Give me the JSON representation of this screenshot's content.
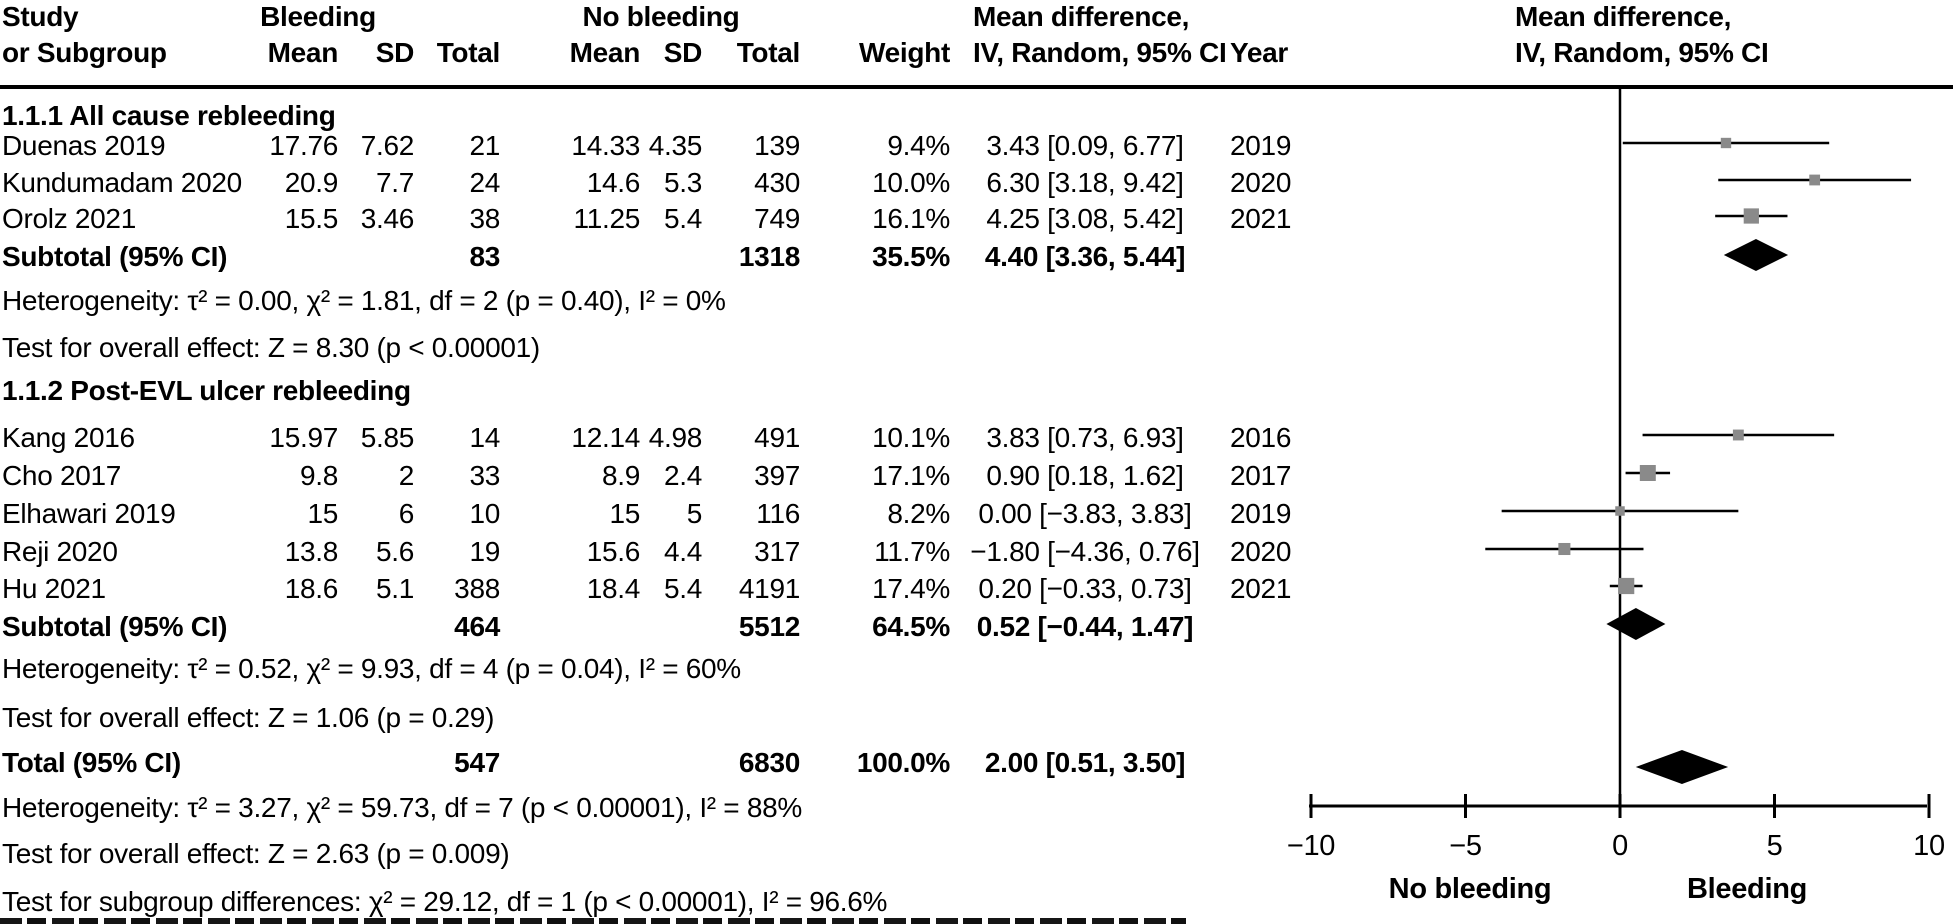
{
  "header": {
    "study_line1": "Study",
    "study_line2": "or Subgroup",
    "bleeding": "Bleeding",
    "no_bleeding": "No bleeding",
    "mean_difference": "Mean difference,",
    "iv_random": "IV, Random, 95% CI",
    "mean": "Mean",
    "sd": "SD",
    "total": "Total",
    "weight": "Weight",
    "year": "Year"
  },
  "colors": {
    "square": "#8a8a8a",
    "line": "#000000",
    "diamond": "#000000",
    "text": "#000000"
  },
  "chart_data": {
    "type": "forest",
    "effect_measure": "Mean difference, IV, Random, 95% CI",
    "model": "IV, Random, 95% CI",
    "xlim": [
      -10,
      10
    ],
    "x_ticks": [
      "−10",
      "−5",
      "0",
      "5",
      "10"
    ],
    "x_tick_values": [
      -10,
      -5,
      0,
      5,
      10
    ],
    "x_axis_label_left": "No bleeding",
    "x_axis_label_right": "Bleeding",
    "subgroups": [
      {
        "name": "1.1.1 All cause rebleeding",
        "studies": [
          {
            "study": "Duenas 2019",
            "b_mean": "17.76",
            "b_sd": "7.62",
            "b_total": "21",
            "nb_mean": "14.33",
            "nb_sd": "4.35",
            "nb_total": "139",
            "weight": "9.4%",
            "weight_pct": 9.4,
            "md": 3.43,
            "ci_low": 0.09,
            "ci_high": 6.77,
            "md_label": "3.43 [0.09, 6.77]",
            "year": "2019"
          },
          {
            "study": "Kundumadam 2020",
            "b_mean": "20.9",
            "b_sd": "7.7",
            "b_total": "24",
            "nb_mean": "14.6",
            "nb_sd": "5.3",
            "nb_total": "430",
            "weight": "10.0%",
            "weight_pct": 10.0,
            "md": 6.3,
            "ci_low": 3.18,
            "ci_high": 9.42,
            "md_label": "6.30 [3.18, 9.42]",
            "year": "2020"
          },
          {
            "study": "Orolz 2021",
            "b_mean": "15.5",
            "b_sd": "3.46",
            "b_total": "38",
            "nb_mean": "11.25",
            "nb_sd": "5.4",
            "nb_total": "749",
            "weight": "16.1%",
            "weight_pct": 16.1,
            "md": 4.25,
            "ci_low": 3.08,
            "ci_high": 5.42,
            "md_label": "4.25 [3.08, 5.42]",
            "year": "2021"
          }
        ],
        "subtotal": {
          "label": "Subtotal (95% CI)",
          "b_total": "83",
          "nb_total": "1318",
          "weight": "35.5%",
          "md": 4.4,
          "ci_low": 3.36,
          "ci_high": 5.44,
          "md_label": "4.40 [3.36, 5.44]"
        },
        "heterogeneity": "Heterogeneity: τ² = 0.00, χ² = 1.81, df = 2 (p = 0.40), I² = 0%",
        "overall_effect": "Test for overall effect: Z = 8.30 (p < 0.00001)"
      },
      {
        "name": "1.1.2 Post-EVL ulcer rebleeding",
        "studies": [
          {
            "study": "Kang 2016",
            "b_mean": "15.97",
            "b_sd": "5.85",
            "b_total": "14",
            "nb_mean": "12.14",
            "nb_sd": "4.98",
            "nb_total": "491",
            "weight": "10.1%",
            "weight_pct": 10.1,
            "md": 3.83,
            "ci_low": 0.73,
            "ci_high": 6.93,
            "md_label": "3.83 [0.73, 6.93]",
            "year": "2016"
          },
          {
            "study": "Cho 2017",
            "b_mean": "9.8",
            "b_sd": "2",
            "b_total": "33",
            "nb_mean": "8.9",
            "nb_sd": "2.4",
            "nb_total": "397",
            "weight": "17.1%",
            "weight_pct": 17.1,
            "md": 0.9,
            "ci_low": 0.18,
            "ci_high": 1.62,
            "md_label": "0.90 [0.18, 1.62]",
            "year": "2017"
          },
          {
            "study": "Elhawari 2019",
            "b_mean": "15",
            "b_sd": "6",
            "b_total": "10",
            "nb_mean": "15",
            "nb_sd": "5",
            "nb_total": "116",
            "weight": "8.2%",
            "weight_pct": 8.2,
            "md": 0.0,
            "ci_low": -3.83,
            "ci_high": 3.83,
            "md_label": "0.00 [−3.83, 3.83]",
            "year": "2019"
          },
          {
            "study": "Reji 2020",
            "b_mean": "13.8",
            "b_sd": "5.6",
            "b_total": "19",
            "nb_mean": "15.6",
            "nb_sd": "4.4",
            "nb_total": "317",
            "weight": "11.7%",
            "weight_pct": 11.7,
            "md": -1.8,
            "ci_low": -4.36,
            "ci_high": 0.76,
            "md_label": "−1.80 [−4.36, 0.76]",
            "year": "2020"
          },
          {
            "study": "Hu 2021",
            "b_mean": "18.6",
            "b_sd": "5.1",
            "b_total": "388",
            "nb_mean": "18.4",
            "nb_sd": "5.4",
            "nb_total": "4191",
            "weight": "17.4%",
            "weight_pct": 17.4,
            "md": 0.2,
            "ci_low": -0.33,
            "ci_high": 0.73,
            "md_label": "0.20 [−0.33, 0.73]",
            "year": "2021"
          }
        ],
        "subtotal": {
          "label": "Subtotal (95% CI)",
          "b_total": "464",
          "nb_total": "5512",
          "weight": "64.5%",
          "md": 0.52,
          "ci_low": -0.44,
          "ci_high": 1.47,
          "md_label": "0.52 [−0.44, 1.47]"
        },
        "heterogeneity": "Heterogeneity: τ² = 0.52, χ² = 9.93, df = 4 (p = 0.04), I² = 60%",
        "overall_effect": "Test for overall effect: Z = 1.06 (p = 0.29)"
      }
    ],
    "total": {
      "label": "Total (95% CI)",
      "b_total": "547",
      "nb_total": "6830",
      "weight": "100.0%",
      "md": 2.0,
      "ci_low": 0.51,
      "ci_high": 3.5,
      "md_label": "2.00 [0.51, 3.50]"
    },
    "total_heterogeneity": "Heterogeneity: τ² = 3.27, χ² = 59.73, df = 7 (p < 0.00001), I² = 88%",
    "total_overall_effect": "Test for overall effect: Z = 2.63 (p = 0.009)",
    "subgroup_differences": "Test for subgroup differences: χ² = 29.12, df = 1 (p < 0.00001), I² = 96.6%"
  }
}
